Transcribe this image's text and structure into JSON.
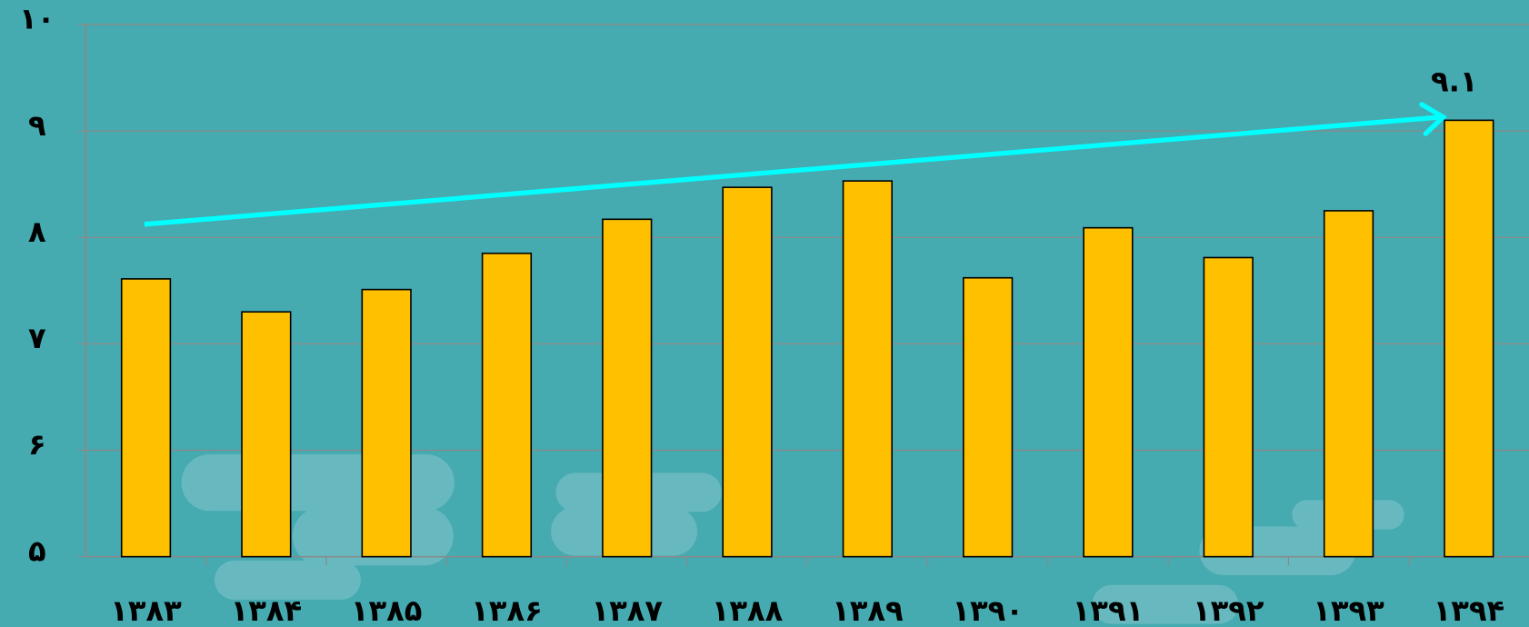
{
  "chart_data": {
    "type": "bar",
    "categories": [
      "۱۳۸۳",
      "۱۳۸۴",
      "۱۳۸۵",
      "۱۳۸۶",
      "۱۳۸۷",
      "۱۳۸۸",
      "۱۳۸۹",
      "۱۳۹۰",
      "۱۳۹۱",
      "۱۳۹۲",
      "۱۳۹۳",
      "۱۳۹۴"
    ],
    "values": [
      7.61,
      7.3,
      7.51,
      7.85,
      8.17,
      8.47,
      8.53,
      7.62,
      8.09,
      7.81,
      8.25,
      9.1
    ],
    "value_labels": [
      null,
      null,
      null,
      null,
      null,
      null,
      null,
      null,
      null,
      null,
      null,
      "۹.۱"
    ],
    "color": "#ffc000",
    "ylim": [
      5,
      10
    ],
    "yticks": [
      {
        "value": 5,
        "label": "۵"
      },
      {
        "value": 6,
        "label": "۶"
      },
      {
        "value": 7,
        "label": "۷"
      },
      {
        "value": 8,
        "label": "۸"
      },
      {
        "value": 9,
        "label": "۹"
      },
      {
        "value": 10,
        "label": "۱۰"
      }
    ],
    "grid": true
  }
}
